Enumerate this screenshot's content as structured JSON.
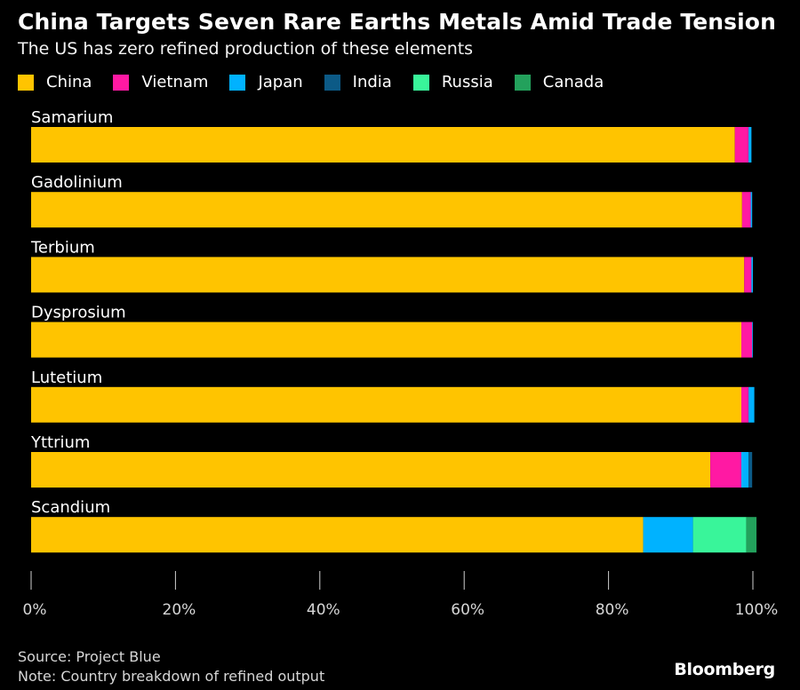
{
  "chart_data": {
    "type": "bar",
    "orientation": "horizontal",
    "stacked": true,
    "title": "China Targets Seven Rare Earths Metals Amid Trade Tension",
    "subtitle": "The US has zero refined production of these elements",
    "categories": [
      "Samarium",
      "Gadolinium",
      "Terbium",
      "Dysprosium",
      "Lutetium",
      "Yttrium",
      "Scandium"
    ],
    "series": [
      {
        "name": "China",
        "color": "#FFC400",
        "values": [
          97.5,
          98.5,
          98.8,
          98.4,
          98.4,
          94.1,
          84.8
        ]
      },
      {
        "name": "Vietnam",
        "color": "#FF19A3",
        "values": [
          1.9,
          1.2,
          1.0,
          1.5,
          1.0,
          4.3,
          0
        ]
      },
      {
        "name": "Japan",
        "color": "#00B2FF",
        "values": [
          0.4,
          0.2,
          0.2,
          0.1,
          0.8,
          1.0,
          6.9
        ]
      },
      {
        "name": "India",
        "color": "#0C5A86",
        "values": [
          0,
          0,
          0,
          0,
          0,
          0.5,
          0
        ]
      },
      {
        "name": "Russia",
        "color": "#39F59A",
        "values": [
          0,
          0,
          0,
          0,
          0,
          0,
          7.4
        ]
      },
      {
        "name": "Canada",
        "color": "#23A15C",
        "values": [
          0,
          0,
          0,
          0,
          0,
          0,
          1.4
        ]
      }
    ],
    "xlim": [
      0,
      100
    ],
    "xticks": [
      "0%",
      "20%",
      "40%",
      "60%",
      "80%",
      "100%"
    ],
    "legend_position": "top-left",
    "grid": false
  },
  "footer": {
    "source": "Source: Project Blue",
    "note": "Note: Country breakdown of refined output",
    "brand": "Bloomberg"
  }
}
